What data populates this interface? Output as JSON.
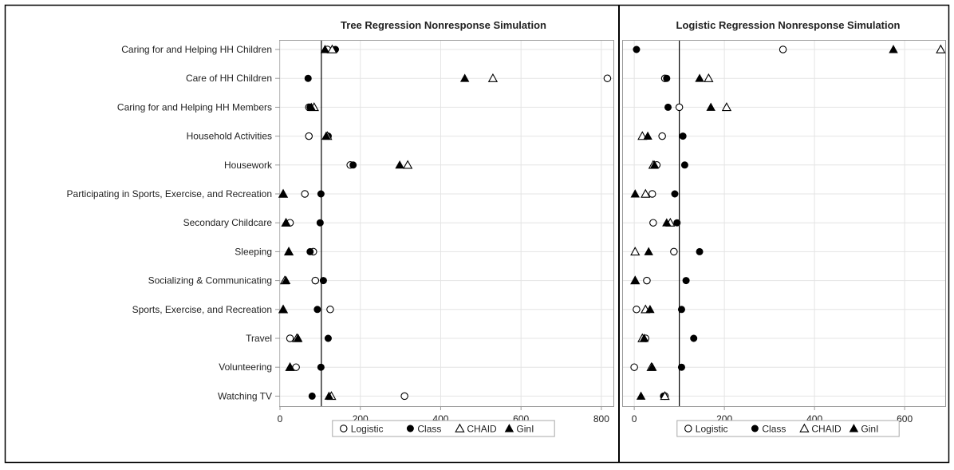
{
  "chart_data": [
    {
      "type": "scatter",
      "title": "Tree Regression Nonresponse Simulation",
      "xlim": [
        0,
        830
      ],
      "xticks": [
        0,
        200,
        400,
        600,
        800
      ],
      "reference_x": 103,
      "grid": true,
      "categories": [
        "Caring for and Helping HH Children",
        "Care of HH Children",
        "Caring for and Helping HH Members",
        "Household Activities",
        "Housework",
        "Participating in Sports, Exercise, and Recreation",
        "Secondary Childcare",
        "Sleeping",
        "Socializing & Communicating",
        "Sports, Exercise, and Recreation",
        "Travel",
        "Volunteering",
        "Watching TV"
      ],
      "series": [
        {
          "name": "Logistic",
          "values": [
            118,
            815,
            72,
            72,
            175,
            62,
            25,
            83,
            88,
            125,
            25,
            40,
            310
          ]
        },
        {
          "name": "Class",
          "values": [
            138,
            70,
            75,
            120,
            182,
            102,
            100,
            75,
            108,
            93,
            120,
            102,
            80
          ]
        },
        {
          "name": "CHAID",
          "values": [
            130,
            530,
            85,
            118,
            318,
            8,
            15,
            22,
            12,
            8,
            42,
            25,
            128
          ]
        },
        {
          "name": "Gini",
          "values": [
            112,
            460,
            78,
            115,
            298,
            8,
            15,
            22,
            15,
            8,
            45,
            25,
            122
          ]
        }
      ]
    },
    {
      "type": "scatter",
      "title": "Logistic Regression Nonresponse Simulation",
      "xlim": [
        -25,
        690
      ],
      "xticks": [
        0,
        200,
        400,
        600
      ],
      "reference_x": 100,
      "grid": true,
      "categories": [
        "Caring for and Helping HH Children",
        "Care of HH Children",
        "Caring for and Helping HH Members",
        "Household Activities",
        "Housework",
        "Participating in Sports, Exercise, and Recreation",
        "Secondary Childcare",
        "Sleeping",
        "Socializing & Communicating",
        "Sports, Exercise, and Recreation",
        "Travel",
        "Volunteering",
        "Watching TV"
      ],
      "series": [
        {
          "name": "Logistic",
          "values": [
            330,
            68,
            100,
            62,
            50,
            40,
            42,
            88,
            28,
            5,
            25,
            0,
            68
          ]
        },
        {
          "name": "Class",
          "values": [
            5,
            72,
            75,
            108,
            112,
            90,
            95,
            145,
            115,
            105,
            132,
            105,
            65
          ]
        },
        {
          "name": "CHAID",
          "values": [
            680,
            165,
            205,
            18,
            42,
            25,
            80,
            2,
            2,
            25,
            18,
            38,
            68
          ]
        },
        {
          "name": "Gini",
          "values": [
            575,
            145,
            170,
            30,
            45,
            2,
            72,
            32,
            2,
            35,
            22,
            40,
            15
          ]
        }
      ]
    }
  ],
  "legend": {
    "items": [
      {
        "label": "Logistic",
        "marker": "circle-open"
      },
      {
        "label": "Class",
        "marker": "circle-filled"
      },
      {
        "label": "CHAID",
        "marker": "triangle-open"
      },
      {
        "label": "GinI",
        "marker": "triangle-filled"
      }
    ]
  },
  "colors": {
    "marker": "#000000",
    "grid": "#e4e4e4",
    "axis": "#999999",
    "frame": "#000000"
  }
}
